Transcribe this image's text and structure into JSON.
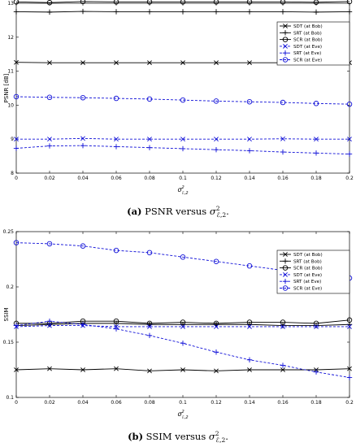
{
  "chart_data": [
    {
      "type": "line",
      "caption": {
        "tag": "(a)",
        "text": "PSNR versus",
        "sym": "σ",
        "sup": "2",
        "sub": "ℰ,2",
        "end": "."
      },
      "ylabel": "PSNR [dB]",
      "xlabel": {
        "sym": "σ",
        "sup": "2",
        "sub": "ℰ,2"
      },
      "xlim": [
        0,
        0.2
      ],
      "ylim": [
        8,
        13
      ],
      "xticks": [
        "0",
        "0.02",
        "0.04",
        "0.06",
        "0.08",
        "0.1",
        "0.12",
        "0.14",
        "0.16",
        "0.18",
        "0.2"
      ],
      "yticks": [
        "8",
        "9",
        "10",
        "11",
        "12",
        "13"
      ],
      "x": [
        0,
        0.02,
        0.04,
        0.06,
        0.08,
        0.1,
        0.12,
        0.14,
        0.16,
        0.18,
        0.2
      ],
      "legend_position": "top-right",
      "series": [
        {
          "name": "SDT (at Bob)",
          "color": "#000000",
          "dash": "solid",
          "marker": "x",
          "values": [
            11.26,
            11.25,
            11.25,
            11.25,
            11.25,
            11.25,
            11.25,
            11.25,
            11.25,
            11.25,
            11.25
          ]
        },
        {
          "name": "SRT (at Bob)",
          "color": "#000000",
          "dash": "solid",
          "marker": "plus",
          "values": [
            12.75,
            12.74,
            12.76,
            12.75,
            12.75,
            12.75,
            12.75,
            12.75,
            12.75,
            12.74,
            12.75
          ]
        },
        {
          "name": "SCR (at Bob)",
          "color": "#000000",
          "dash": "solid",
          "marker": "circle",
          "values": [
            13.04,
            13.02,
            13.05,
            13.04,
            13.04,
            13.04,
            13.04,
            13.04,
            13.04,
            13.03,
            13.05
          ]
        },
        {
          "name": "SDT (at Eve)",
          "color": "#1010d8",
          "dash": "dashed",
          "marker": "x",
          "values": [
            9.0,
            9.0,
            9.02,
            9.0,
            9.0,
            9.0,
            9.0,
            9.0,
            9.01,
            9.0,
            9.0
          ]
        },
        {
          "name": "SRT (at Eve)",
          "color": "#1010d8",
          "dash": "dashed",
          "marker": "plus",
          "values": [
            8.73,
            8.8,
            8.81,
            8.78,
            8.75,
            8.72,
            8.69,
            8.66,
            8.62,
            8.59,
            8.56
          ]
        },
        {
          "name": "SCR (at Eve)",
          "color": "#1010d8",
          "dash": "dashed",
          "marker": "circle",
          "values": [
            10.25,
            10.23,
            10.22,
            10.2,
            10.18,
            10.15,
            10.12,
            10.1,
            10.08,
            10.05,
            10.03
          ]
        }
      ]
    },
    {
      "type": "line",
      "caption": {
        "tag": "(b)",
        "text": "SSIM versus",
        "sym": "σ",
        "sup": "2",
        "sub": "ℰ,2",
        "end": "."
      },
      "ylabel": "SSIM",
      "xlabel": {
        "sym": "σ",
        "sup": "2",
        "sub": "ℰ,2"
      },
      "xlim": [
        0,
        0.2
      ],
      "ylim": [
        0.1,
        0.25
      ],
      "xticks": [
        "0",
        "0.02",
        "0.04",
        "0.06",
        "0.08",
        "0.1",
        "0.12",
        "0.14",
        "0.16",
        "0.18",
        "0.2"
      ],
      "yticks": [
        "0.1",
        "0.15",
        "0.2",
        "0.25"
      ],
      "x": [
        0,
        0.02,
        0.04,
        0.06,
        0.08,
        0.1,
        0.12,
        0.14,
        0.16,
        0.18,
        0.2
      ],
      "legend_position": "top-right",
      "series": [
        {
          "name": "SDT (at Bob)",
          "color": "#000000",
          "dash": "solid",
          "marker": "x",
          "values": [
            0.125,
            0.126,
            0.125,
            0.126,
            0.124,
            0.125,
            0.124,
            0.125,
            0.125,
            0.125,
            0.126
          ]
        },
        {
          "name": "SRT (at Bob)",
          "color": "#000000",
          "dash": "solid",
          "marker": "plus",
          "values": [
            0.165,
            0.166,
            0.167,
            0.167,
            0.166,
            0.166,
            0.166,
            0.166,
            0.165,
            0.165,
            0.166
          ]
        },
        {
          "name": "SCR (at Bob)",
          "color": "#000000",
          "dash": "solid",
          "marker": "circle",
          "values": [
            0.167,
            0.167,
            0.169,
            0.169,
            0.167,
            0.168,
            0.167,
            0.168,
            0.168,
            0.167,
            0.17
          ]
        },
        {
          "name": "SDT (at Eve)",
          "color": "#1010d8",
          "dash": "dashed",
          "marker": "x",
          "values": [
            0.164,
            0.165,
            0.165,
            0.164,
            0.164,
            0.164,
            0.164,
            0.164,
            0.164,
            0.164,
            0.164
          ]
        },
        {
          "name": "SRT (at Eve)",
          "color": "#1010d8",
          "dash": "dashed",
          "marker": "plus",
          "values": [
            0.165,
            0.169,
            0.166,
            0.162,
            0.156,
            0.149,
            0.141,
            0.134,
            0.129,
            0.123,
            0.118
          ]
        },
        {
          "name": "SCR (at Eve)",
          "color": "#1010d8",
          "dash": "dashed",
          "marker": "circle",
          "values": [
            0.24,
            0.239,
            0.237,
            0.233,
            0.231,
            0.227,
            0.223,
            0.219,
            0.215,
            0.211,
            0.208
          ]
        }
      ]
    }
  ]
}
